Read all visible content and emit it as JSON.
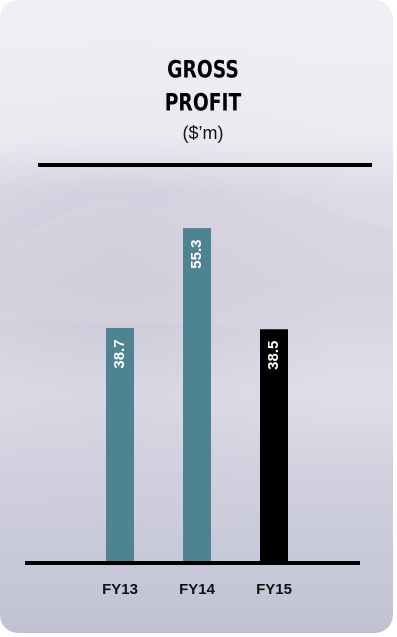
{
  "chart_data": {
    "type": "bar",
    "title": "GROSS PROFIT",
    "subtitle": "($’m)",
    "categories": [
      "FY13",
      "FY14",
      "FY15"
    ],
    "values": [
      38.7,
      55.3,
      38.5
    ],
    "colors": [
      "#4e8391",
      "#4e8391",
      "#000000"
    ]
  }
}
